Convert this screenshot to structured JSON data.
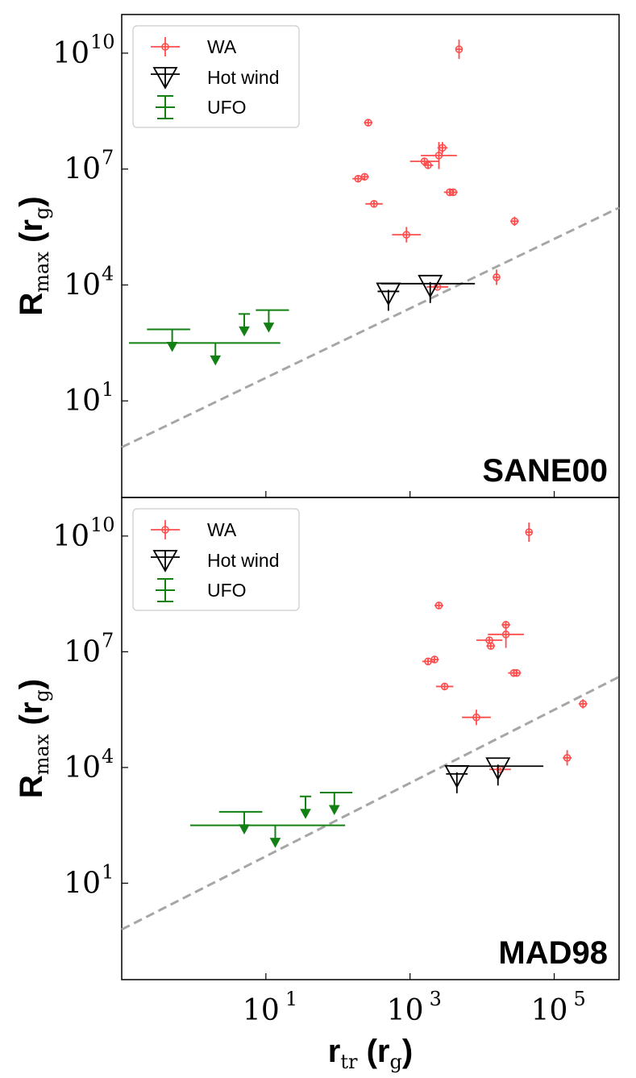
{
  "chart_data": [
    {
      "type": "scatter",
      "panel_label": "SANE00",
      "xlabel": {
        "main": "r",
        "sub": "tr",
        "units_main": "r",
        "units_sub": "g"
      },
      "ylabel": {
        "main": "R",
        "sub": "max",
        "units_main": "r",
        "units_sub": "g"
      },
      "xscale": "log",
      "yscale": "log",
      "xlim_log10": [
        -1.0,
        5.9
      ],
      "ylim_log10": [
        -1.5,
        11.0
      ],
      "xticks": [
        {
          "base": "10",
          "exp": "1",
          "log10": 1
        },
        {
          "base": "10",
          "exp": "3",
          "log10": 3
        },
        {
          "base": "10",
          "exp": "5",
          "log10": 5
        }
      ],
      "yticks": [
        {
          "base": "10",
          "exp": "1",
          "log10": 1
        },
        {
          "base": "10",
          "exp": "4",
          "log10": 4
        },
        {
          "base": "10",
          "exp": "7",
          "log10": 7
        },
        {
          "base": "10",
          "exp": "10",
          "log10": 10
        }
      ],
      "legend_position": "top-left",
      "dashed_line": {
        "x_log10": [
          -1.0,
          5.9
        ],
        "y_log10": [
          -0.2,
          6.0
        ],
        "color": "#a6a6a6"
      },
      "series": [
        {
          "name": "WA",
          "color": "#ff4d4d",
          "points_log10": [
            {
              "x": 3.68,
              "y": 10.1,
              "xerr": 0.05,
              "yerr": 0.25
            },
            {
              "x": 2.42,
              "y": 8.2,
              "xerr": 0.06,
              "yerr": 0.08
            },
            {
              "x": 3.45,
              "y": 7.55,
              "xerr": 0.07,
              "yerr": 0.15
            },
            {
              "x": 3.4,
              "y": 7.35,
              "xerr": 0.25,
              "yerr": 0.35
            },
            {
              "x": 3.2,
              "y": 7.2,
              "xerr": 0.2,
              "yerr": 0.08
            },
            {
              "x": 3.25,
              "y": 7.1,
              "xerr": 0.07,
              "yerr": 0.08
            },
            {
              "x": 2.28,
              "y": 6.75,
              "xerr": 0.08,
              "yerr": 0.08
            },
            {
              "x": 2.37,
              "y": 6.8,
              "xerr": 0.06,
              "yerr": 0.08
            },
            {
              "x": 3.55,
              "y": 6.4,
              "xerr": 0.08,
              "yerr": 0.1
            },
            {
              "x": 3.6,
              "y": 6.4,
              "xerr": 0.06,
              "yerr": 0.08
            },
            {
              "x": 2.5,
              "y": 6.1,
              "xerr": 0.12,
              "yerr": 0.08
            },
            {
              "x": 4.45,
              "y": 5.65,
              "xerr": 0.06,
              "yerr": 0.12
            },
            {
              "x": 2.95,
              "y": 5.3,
              "xerr": 0.2,
              "yerr": 0.2
            },
            {
              "x": 4.2,
              "y": 4.2,
              "xerr": 0.05,
              "yerr": 0.2
            },
            {
              "x": 3.38,
              "y": 3.95,
              "xerr": 0.15,
              "yerr": 0.05
            }
          ]
        },
        {
          "name": "Hot wind",
          "color": "#000000",
          "points_log10": [
            {
              "x": 2.7,
              "y": 3.75,
              "xmin": 2.55,
              "xmax": 2.85
            },
            {
              "x": 3.28,
              "y": 3.95,
              "xmin": 2.6,
              "xmax": 3.9
            }
          ]
        },
        {
          "name": "UFO",
          "color": "#138013",
          "upper_limits_log10": [
            {
              "x": -0.3,
              "y": 2.85,
              "xmin": -0.65,
              "xmax": -0.05
            },
            {
              "x": 0.3,
              "y": 2.5,
              "xmin": -0.9,
              "xmax": 1.2
            },
            {
              "x": 0.7,
              "y": 3.25,
              "xmin": 0.62,
              "xmax": 0.78
            },
            {
              "x": 1.04,
              "y": 3.35,
              "xmin": 0.86,
              "xmax": 1.32
            }
          ]
        }
      ]
    },
    {
      "type": "scatter",
      "panel_label": "MAD98",
      "xlabel": {
        "main": "r",
        "sub": "tr",
        "units_main": "r",
        "units_sub": "g"
      },
      "ylabel": {
        "main": "R",
        "sub": "max",
        "units_main": "r",
        "units_sub": "g"
      },
      "xscale": "log",
      "yscale": "log",
      "xlim_log10": [
        -1.0,
        5.9
      ],
      "ylim_log10": [
        -1.5,
        11.0
      ],
      "xticks": [
        {
          "base": "10",
          "exp": "1",
          "log10": 1
        },
        {
          "base": "10",
          "exp": "3",
          "log10": 3
        },
        {
          "base": "10",
          "exp": "5",
          "log10": 5
        }
      ],
      "yticks": [
        {
          "base": "10",
          "exp": "1",
          "log10": 1
        },
        {
          "base": "10",
          "exp": "4",
          "log10": 4
        },
        {
          "base": "10",
          "exp": "7",
          "log10": 7
        },
        {
          "base": "10",
          "exp": "10",
          "log10": 10
        }
      ],
      "legend_position": "top-left",
      "dashed_line": {
        "x_log10": [
          -1.0,
          5.9
        ],
        "y_log10": [
          -0.2,
          6.35
        ],
        "color": "#a6a6a6"
      },
      "series": [
        {
          "name": "WA",
          "color": "#ff4d4d",
          "points_log10": [
            {
              "x": 4.65,
              "y": 10.1,
              "xerr": 0.05,
              "yerr": 0.25
            },
            {
              "x": 3.4,
              "y": 8.2,
              "xerr": 0.06,
              "yerr": 0.08
            },
            {
              "x": 4.33,
              "y": 7.7,
              "xerr": 0.06,
              "yerr": 0.1
            },
            {
              "x": 4.33,
              "y": 7.45,
              "xerr": 0.25,
              "yerr": 0.35
            },
            {
              "x": 4.1,
              "y": 7.3,
              "xerr": 0.18,
              "yerr": 0.08
            },
            {
              "x": 4.12,
              "y": 7.15,
              "xerr": 0.06,
              "yerr": 0.08
            },
            {
              "x": 3.25,
              "y": 6.75,
              "xerr": 0.08,
              "yerr": 0.08
            },
            {
              "x": 3.34,
              "y": 6.8,
              "xerr": 0.06,
              "yerr": 0.08
            },
            {
              "x": 4.44,
              "y": 6.45,
              "xerr": 0.08,
              "yerr": 0.1
            },
            {
              "x": 4.48,
              "y": 6.45,
              "xerr": 0.06,
              "yerr": 0.08
            },
            {
              "x": 3.48,
              "y": 6.1,
              "xerr": 0.12,
              "yerr": 0.08
            },
            {
              "x": 5.4,
              "y": 5.65,
              "xerr": 0.06,
              "yerr": 0.12
            },
            {
              "x": 3.92,
              "y": 5.3,
              "xerr": 0.2,
              "yerr": 0.2
            },
            {
              "x": 5.18,
              "y": 4.25,
              "xerr": 0.06,
              "yerr": 0.2
            },
            {
              "x": 4.25,
              "y": 3.95,
              "xerr": 0.15,
              "yerr": 0.05
            }
          ]
        },
        {
          "name": "Hot wind",
          "color": "#000000",
          "points_log10": [
            {
              "x": 3.65,
              "y": 3.75,
              "xmin": 3.5,
              "xmax": 3.8
            },
            {
              "x": 4.22,
              "y": 3.95,
              "xmin": 3.55,
              "xmax": 4.85
            }
          ]
        },
        {
          "name": "UFO",
          "color": "#138013",
          "upper_limits_log10": [
            {
              "x": 0.7,
              "y": 2.85,
              "xmin": 0.35,
              "xmax": 0.95
            },
            {
              "x": 1.13,
              "y": 2.5,
              "xmin": -0.05,
              "xmax": 2.1
            },
            {
              "x": 1.55,
              "y": 3.25,
              "xmin": 1.47,
              "xmax": 1.63
            },
            {
              "x": 1.95,
              "y": 3.35,
              "xmin": 1.75,
              "xmax": 2.2
            }
          ]
        }
      ]
    }
  ]
}
